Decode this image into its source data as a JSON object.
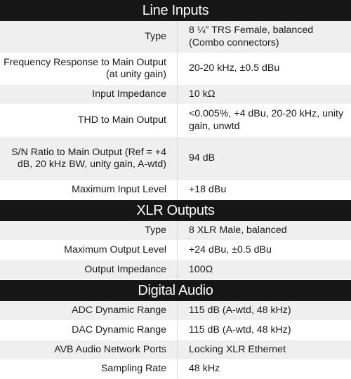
{
  "sections": [
    {
      "title": "Line Inputs",
      "rows": [
        {
          "label": "Type",
          "value": "8 ¼” TRS Female, balanced (Combo connectors)"
        },
        {
          "label": "Frequency Response to Main Output (at unity gain)",
          "value": "20-20 kHz, ±0.5 dBu"
        },
        {
          "label": "Input Impedance",
          "value": "10 kΩ"
        },
        {
          "label": "THD to Main Output",
          "value": "<0.005%, +4 dBu, 20-20 kHz, unity gain, unwtd"
        },
        {
          "label": "S/N Ratio to Main Output (Ref = +4 dB, 20 kHz BW, unity gain, A-wtd)",
          "value": "94 dB"
        },
        {
          "label": "Maximum Input Level",
          "value": "+18 dBu"
        }
      ]
    },
    {
      "title": "XLR Outputs",
      "rows": [
        {
          "label": "Type",
          "value": "8 XLR Male, balanced"
        },
        {
          "label": "Maximum Output Level",
          "value": "+24 dBu, ±0.5 dBu"
        },
        {
          "label": "Output Impedance",
          "value": "100Ω"
        }
      ]
    },
    {
      "title": "Digital Audio",
      "rows": [
        {
          "label": "ADC Dynamic Range",
          "value": "115 dB (A-wtd, 48 kHz)"
        },
        {
          "label": "DAC Dynamic Range",
          "value": "115 dB (A-wtd, 48 kHz)"
        },
        {
          "label": "AVB Audio Network Ports",
          "value": "Locking XLR Ethernet"
        },
        {
          "label": "Sampling Rate",
          "value": "48 kHz"
        }
      ]
    }
  ]
}
